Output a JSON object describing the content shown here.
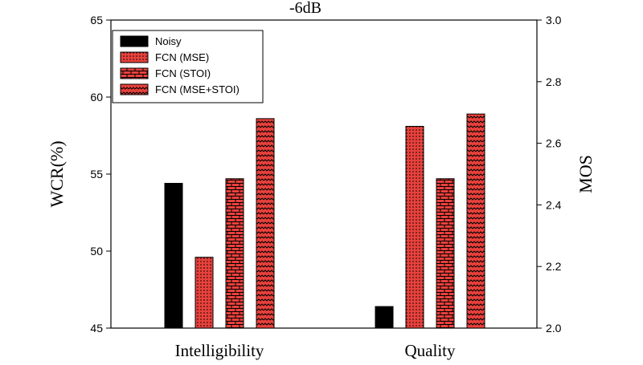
{
  "chart_data": {
    "type": "bar",
    "title": "-6dB",
    "categories": [
      "Intelligibility",
      "Quality"
    ],
    "y_left": {
      "label": "WCR(%)",
      "lim": [
        45,
        65
      ],
      "ticks": [
        45,
        50,
        55,
        60,
        65
      ]
    },
    "y_right": {
      "label": "MOS",
      "lim": [
        2.0,
        3.0
      ],
      "ticks": [
        "2.0",
        "2.2",
        "2.4",
        "2.6",
        "2.8",
        "3.0"
      ]
    },
    "grid": false,
    "legend": {
      "placement": "top-left",
      "entries": [
        "Noisy",
        "FCN (MSE)",
        "FCN (STOI)",
        "FCN (MSE+STOI)"
      ]
    },
    "series": [
      {
        "name": "Noisy",
        "pattern": "solid",
        "color": "#000000",
        "intelligibility": 54.4,
        "quality": 2.07
      },
      {
        "name": "FCN (MSE)",
        "pattern": "dots",
        "color": "#e8413c",
        "intelligibility": 49.6,
        "quality": 2.655
      },
      {
        "name": "FCN (STOI)",
        "pattern": "bricks",
        "color": "#e8413c",
        "intelligibility": 54.7,
        "quality": 2.485
      },
      {
        "name": "FCN (MSE+STOI)",
        "pattern": "waves",
        "color": "#e8413c",
        "intelligibility": 58.6,
        "quality": 2.695
      }
    ]
  }
}
